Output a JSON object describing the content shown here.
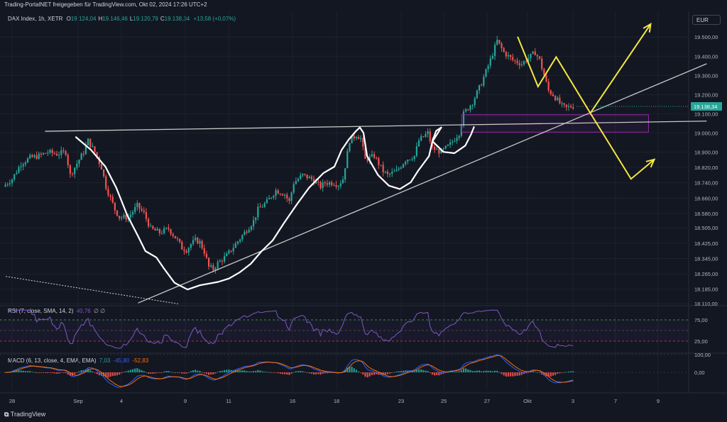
{
  "header": {
    "publisher": "Trading-PortalNET freigegeben für TradingView.com, Okt 02, 2024 17:26 UTC+2",
    "symbol": "DAX Index, 1h, XETR",
    "ohlc": [
      {
        "k": "O",
        "v": "19.124,04"
      },
      {
        "k": "H",
        "v": "19.146,46"
      },
      {
        "k": "L",
        "v": "19.120,79"
      },
      {
        "k": "C",
        "v": "19.138,34"
      }
    ],
    "change": "+13,58 (+0,07%)",
    "currency": "EUR"
  },
  "colors": {
    "background": "#131722",
    "grid": "#1e222d",
    "up": "#26a69a",
    "down": "#ef5350",
    "text": "#b2b5be",
    "price_tag": "#26a69a",
    "white_pattern": "#ffffff",
    "projection": "#f5e642",
    "trendline": "#c8c8c8",
    "zone": "#9c27b0",
    "rsi_line": "#7e57c2",
    "macd_line": "#2962ff",
    "signal_line": "#ff6d00"
  },
  "chart_data": [
    {
      "type": "candlestick",
      "title": "DAX Index, 1h, XETR",
      "y_ticks": [
        "19.500,00",
        "19.400,00",
        "19.300,00",
        "19.200,00",
        "19.100,00",
        "19.000,00",
        "18.900,00",
        "18.820,00",
        "18.740,00",
        "18.660,00",
        "18.580,00",
        "18.505,00",
        "18.425,00",
        "18.345,00",
        "18.265,00",
        "18.185,00",
        "18.110,00"
      ],
      "y_range": [
        18110,
        19560
      ],
      "last_price": "19.138,34",
      "x_ticks": [
        "28",
        "Sep",
        "4",
        "9",
        "11",
        "16",
        "18",
        "23",
        "25",
        "27",
        "Okt",
        "3",
        "7",
        "9"
      ],
      "close_path": [
        [
          0,
          18720
        ],
        [
          4,
          18760
        ],
        [
          8,
          18840
        ],
        [
          12,
          18870
        ],
        [
          16,
          18880
        ],
        [
          20,
          18900
        ],
        [
          24,
          18890
        ],
        [
          28,
          18900
        ],
        [
          30,
          18780
        ],
        [
          33,
          18840
        ],
        [
          36,
          18900
        ],
        [
          38,
          18960
        ],
        [
          41,
          18900
        ],
        [
          44,
          18820
        ],
        [
          46,
          18720
        ],
        [
          48,
          18660
        ],
        [
          50,
          18600
        ],
        [
          52,
          18560
        ],
        [
          56,
          18560
        ],
        [
          60,
          18620
        ],
        [
          63,
          18580
        ],
        [
          66,
          18500
        ],
        [
          70,
          18480
        ],
        [
          74,
          18500
        ],
        [
          78,
          18440
        ],
        [
          80,
          18400
        ],
        [
          82,
          18390
        ],
        [
          84,
          18420
        ],
        [
          86,
          18440
        ],
        [
          88,
          18430
        ],
        [
          90,
          18380
        ],
        [
          92,
          18300
        ],
        [
          94,
          18290
        ],
        [
          96,
          18320
        ],
        [
          100,
          18360
        ],
        [
          104,
          18420
        ],
        [
          108,
          18480
        ],
        [
          112,
          18540
        ],
        [
          114,
          18600
        ],
        [
          118,
          18640
        ],
        [
          122,
          18700
        ],
        [
          126,
          18680
        ],
        [
          128,
          18640
        ],
        [
          130,
          18740
        ],
        [
          134,
          18780
        ],
        [
          138,
          18760
        ],
        [
          142,
          18720
        ],
        [
          144,
          18740
        ],
        [
          148,
          18740
        ],
        [
          150,
          18730
        ],
        [
          152,
          18760
        ],
        [
          155,
          18960
        ],
        [
          158,
          18990
        ],
        [
          160,
          18970
        ],
        [
          162,
          18860
        ],
        [
          166,
          18880
        ],
        [
          168,
          18840
        ],
        [
          170,
          18800
        ],
        [
          172,
          18780
        ],
        [
          176,
          18800
        ],
        [
          180,
          18860
        ],
        [
          184,
          18880
        ],
        [
          186,
          18960
        ],
        [
          188,
          18980
        ],
        [
          190,
          19000
        ],
        [
          192,
          18920
        ],
        [
          196,
          18900
        ],
        [
          200,
          18940
        ],
        [
          204,
          19000
        ],
        [
          206,
          19100
        ],
        [
          210,
          19160
        ],
        [
          214,
          19260
        ],
        [
          218,
          19380
        ],
        [
          221,
          19480
        ],
        [
          224,
          19420
        ],
        [
          228,
          19380
        ],
        [
          232,
          19360
        ],
        [
          236,
          19400
        ],
        [
          238,
          19420
        ],
        [
          240,
          19380
        ],
        [
          242,
          19300
        ],
        [
          244,
          19220
        ],
        [
          246,
          19200
        ],
        [
          250,
          19140
        ],
        [
          252,
          19130
        ],
        [
          254,
          19138
        ]
      ],
      "annotations": {
        "white_pattern": [
          [
            0.1045,
            0.325
          ],
          [
            0.125,
            0.355
          ],
          [
            0.145,
            0.395
          ],
          [
            0.16,
            0.445
          ],
          [
            0.175,
            0.51
          ],
          [
            0.19,
            0.56
          ],
          [
            0.2,
            0.595
          ],
          [
            0.215,
            0.61
          ],
          [
            0.225,
            0.635
          ],
          [
            0.24,
            0.67
          ],
          [
            0.258,
            0.686
          ],
          [
            0.275,
            0.676
          ],
          [
            0.3,
            0.668
          ],
          [
            0.315,
            0.66
          ],
          [
            0.33,
            0.645
          ],
          [
            0.345,
            0.625
          ],
          [
            0.36,
            0.595
          ],
          [
            0.375,
            0.57
          ],
          [
            0.39,
            0.53
          ],
          [
            0.408,
            0.485
          ],
          [
            0.425,
            0.445
          ],
          [
            0.445,
            0.41
          ],
          [
            0.46,
            0.395
          ],
          [
            0.47,
            0.355
          ],
          [
            0.48,
            0.33
          ],
          [
            0.49,
            0.31
          ],
          [
            0.495,
            0.302
          ],
          [
            0.5,
            0.315
          ],
          [
            0.505,
            0.37
          ],
          [
            0.52,
            0.415
          ],
          [
            0.535,
            0.44
          ],
          [
            0.55,
            0.448
          ],
          [
            0.565,
            0.432
          ],
          [
            0.575,
            0.405
          ],
          [
            0.59,
            0.37
          ],
          [
            0.595,
            0.333
          ],
          [
            0.6,
            0.31
          ],
          [
            0.607,
            0.302
          ],
          [
            0.595,
            0.335
          ],
          [
            0.61,
            0.36
          ],
          [
            0.625,
            0.363
          ],
          [
            0.64,
            0.345
          ],
          [
            0.648,
            0.318
          ],
          [
            0.652,
            0.301
          ]
        ],
        "projection_up": [
          [
            0.712,
            0.087
          ],
          [
            0.74,
            0.205
          ],
          [
            0.765,
            0.135
          ],
          [
            0.812,
            0.268
          ],
          [
            0.895,
            0.057
          ]
        ],
        "projection_down": [
          [
            0.812,
            0.268
          ],
          [
            0.868,
            0.424
          ],
          [
            0.9,
            0.378
          ]
        ],
        "neckline": [
          [
            0.062,
            0.311
          ],
          [
            0.972,
            0.287
          ]
        ],
        "support": [
          [
            0.19,
            0.718
          ],
          [
            0.972,
            0.151
          ]
        ],
        "dotted": [
          [
            0.008,
            0.655
          ],
          [
            0.245,
            0.72
          ]
        ],
        "zone": [
          [
            0.635,
            0.272
          ],
          [
            0.892,
            0.313
          ]
        ]
      }
    },
    {
      "type": "line",
      "title": "RSI (7, close, SMA, 14, 2)",
      "value_label": "40,76",
      "extra": "∅ ∅",
      "y_ticks": [
        "75,00",
        "25,00"
      ],
      "y_range": [
        0,
        100
      ]
    },
    {
      "type": "histogram",
      "title": "MACD (6, 13, close, 4, EMA, EMA)",
      "values": [
        "7,03",
        "-45,80",
        "-52,83"
      ],
      "y_ticks": [
        "100,00",
        "0,00"
      ],
      "y_range": [
        -100,
        100
      ]
    }
  ],
  "branding": {
    "name": "TradingView"
  }
}
